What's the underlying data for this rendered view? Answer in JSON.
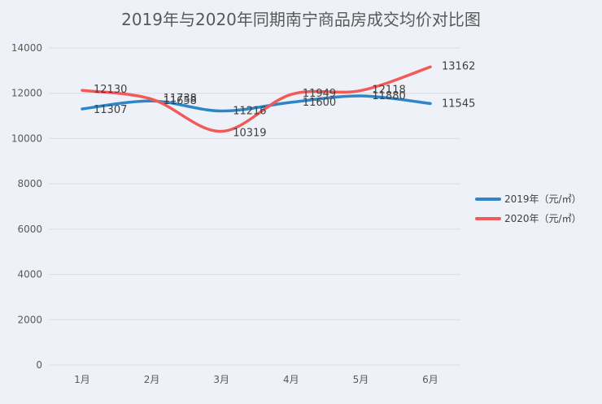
{
  "chart_data": {
    "type": "line",
    "title": "2019年与2020年同期南宁商品房成交均价对比图",
    "categories": [
      "1月",
      "2月",
      "3月",
      "4月",
      "5月",
      "6月"
    ],
    "series": [
      {
        "name": "2019年（元/㎡）",
        "color": "#2e86c9",
        "values": [
          11307,
          11658,
          11216,
          11600,
          11880,
          11545
        ]
      },
      {
        "name": "2020年（元/㎡）",
        "color": "#f25a5a",
        "values": [
          12130,
          11738,
          10319,
          11949,
          12118,
          13162
        ]
      }
    ],
    "ylim": [
      0,
      14000
    ],
    "yticks": [
      0,
      2000,
      4000,
      6000,
      8000,
      10000,
      12000,
      14000
    ],
    "grid": true,
    "legend": "right",
    "xlabel": "",
    "ylabel": ""
  }
}
